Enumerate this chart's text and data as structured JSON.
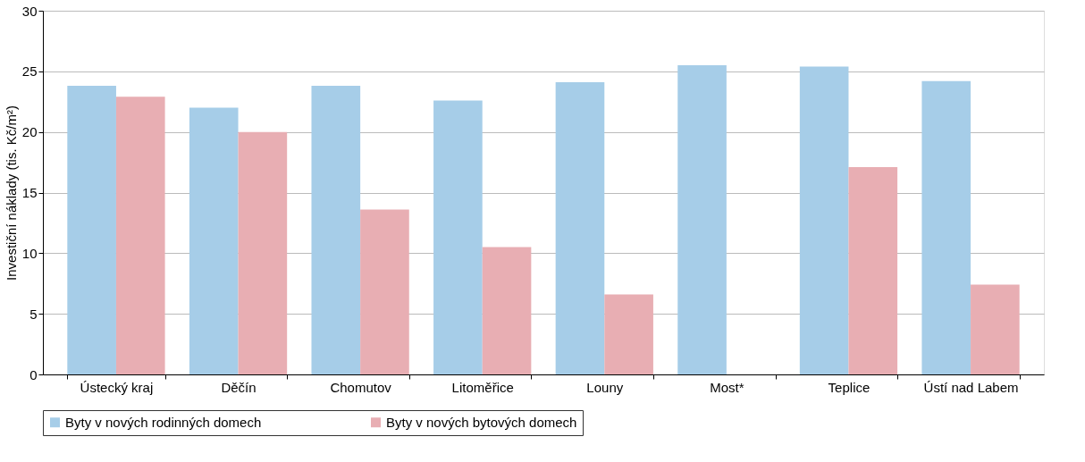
{
  "chart_data": {
    "type": "bar",
    "ylabel": "Investiční náklady (tis. Kč/m²)",
    "categories": [
      "Ústecký kraj",
      "Děčín",
      "Chomutov",
      "Litoměřice",
      "Louny",
      "Most*",
      "Teplice",
      "Ústí nad Labem"
    ],
    "series": [
      {
        "name": "Byty v nových rodinných domech",
        "color": "#a6cde8",
        "values": [
          23.8,
          22.0,
          23.8,
          22.6,
          24.1,
          25.5,
          25.4,
          24.2
        ]
      },
      {
        "name": "Byty v nových bytových domech",
        "color": "#e8aeb3",
        "values": [
          22.9,
          20.0,
          13.6,
          10.5,
          6.6,
          null,
          17.1,
          7.4
        ]
      }
    ],
    "ylim": [
      0,
      30
    ],
    "yticks": [
      0,
      5,
      10,
      15,
      20,
      25,
      30
    ],
    "grid": "y",
    "legend": "bottom"
  }
}
